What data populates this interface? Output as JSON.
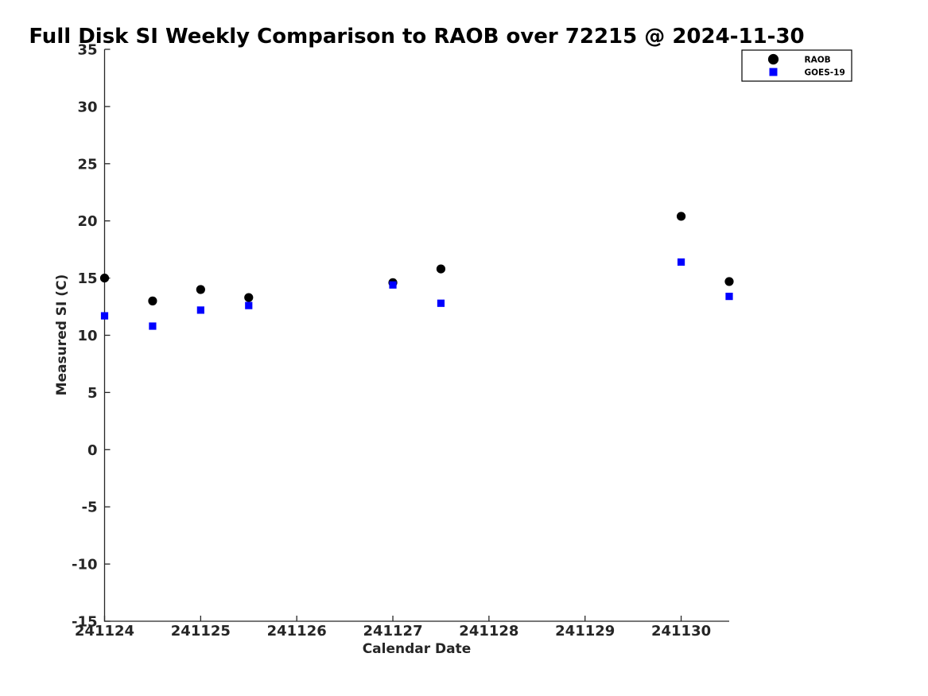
{
  "title": "Full Disk SI Weekly Comparison to RAOB over 72215 @ 2024-11-30",
  "chart_data": {
    "type": "scatter",
    "title": "Full Disk SI Weekly Comparison to RAOB over 72215 @ 2024-11-30",
    "xlabel": "Calendar Date",
    "ylabel": "Measured SI (C)",
    "xlim": [
      241124,
      241130.5
    ],
    "ylim": [
      -15,
      35
    ],
    "x_ticks": [
      241124,
      241125,
      241126,
      241127,
      241128,
      241129,
      241130
    ],
    "y_ticks": [
      35,
      30,
      25,
      20,
      15,
      10,
      5,
      0,
      -5,
      -10,
      -15
    ],
    "grid": false,
    "legend": {
      "position": "top-right",
      "border": true
    },
    "x": [
      241124,
      241124.5,
      241125,
      241125.5,
      241127,
      241127.5,
      241130,
      241130.5
    ],
    "series": [
      {
        "name": "RAOB",
        "marker": "circle",
        "color": "#000000",
        "values": [
          15.0,
          13.0,
          14.0,
          13.3,
          14.6,
          15.8,
          20.4,
          14.7
        ]
      },
      {
        "name": "GOES-19",
        "marker": "square",
        "color": "#0000ff",
        "values": [
          11.7,
          10.8,
          12.2,
          12.6,
          14.4,
          12.8,
          16.4,
          13.4
        ]
      }
    ]
  },
  "colors": {
    "background": "#ffffff",
    "axis": "#262626",
    "title": "#000000",
    "raob": "#000000",
    "goes19": "#0000ff",
    "legend_border": "#000000"
  }
}
